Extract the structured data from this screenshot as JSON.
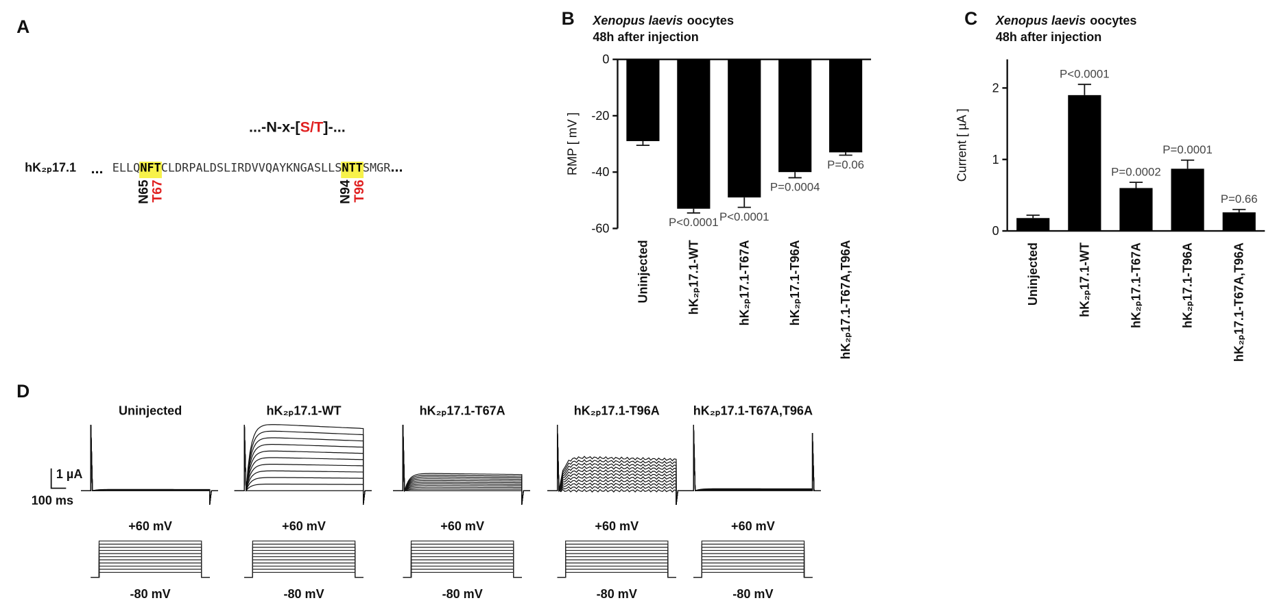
{
  "panel_a": {
    "panel": "A",
    "motif": {
      "pre": "...-N-x-[",
      "site": "S/T",
      "post": "]-..."
    },
    "protein": "hK₂ₚ17.1",
    "sequence": {
      "lead": "...",
      "segments": [
        "ELLQ",
        "NFT",
        "CLDRPALDSLIRDVVQAYKNGASLLS",
        "NTT",
        "SMGR"
      ],
      "tail": "..."
    },
    "sites": [
      "N65",
      "T67",
      "N94",
      "T96"
    ]
  },
  "chart_data": [
    {
      "type": "bar",
      "panel": "B",
      "species": "Xenopus laevis",
      "title": "oocytes",
      "subtitle": "48h after injection",
      "y_label": "RMP [ mV ]",
      "categories": [
        "Uninjected",
        "hK₂ₚ17.1-WT",
        "hK₂ₚ17.1-T67A",
        "hK₂ₚ17.1-T96A",
        "hK₂ₚ17.1-T67A,T96A"
      ],
      "values": [
        -29,
        -53,
        -49,
        -40,
        -33
      ],
      "errors": [
        1.5,
        1.5,
        3.5,
        2,
        1
      ],
      "annotations": [
        null,
        "P<0.0001",
        "P<0.0001",
        "P=0.0004",
        "P=0.06"
      ],
      "color": "#000000",
      "ylim": [
        -60,
        0
      ],
      "yticks": [
        0,
        -20,
        -40,
        -60
      ]
    },
    {
      "type": "bar",
      "panel": "C",
      "species": "Xenopus laevis",
      "title": "oocytes",
      "subtitle": "48h after injection",
      "y_label": "Current [ µA ]",
      "categories": [
        "Uninjected",
        "hK₂ₚ17.1-WT",
        "hK₂ₚ17.1-T67A",
        "hK₂ₚ17.1-T96A",
        "hK₂ₚ17.1-T67A,T96A"
      ],
      "values": [
        0.18,
        1.9,
        0.6,
        0.87,
        0.26
      ],
      "errors": [
        0.04,
        0.15,
        0.08,
        0.12,
        0.04
      ],
      "annotations": [
        null,
        "P<0.0001",
        "P=0.0002",
        "P=0.0001",
        "P=0.66"
      ],
      "color": "#000000",
      "ylim": [
        0,
        2.4
      ],
      "yticks": [
        0,
        1,
        2
      ]
    }
  ],
  "panel_d": {
    "panel": "D",
    "titles": [
      "Uninjected",
      "hK₂ₚ17.1-WT",
      "hK₂ₚ17.1-T67A",
      "hK₂ₚ17.1-T96A",
      "hK₂ₚ17.1-T67A,T96A"
    ],
    "scale_current": "1 µA",
    "scale_time": "100 ms",
    "v_high": "+60 mV",
    "v_low": "-80 mV"
  }
}
